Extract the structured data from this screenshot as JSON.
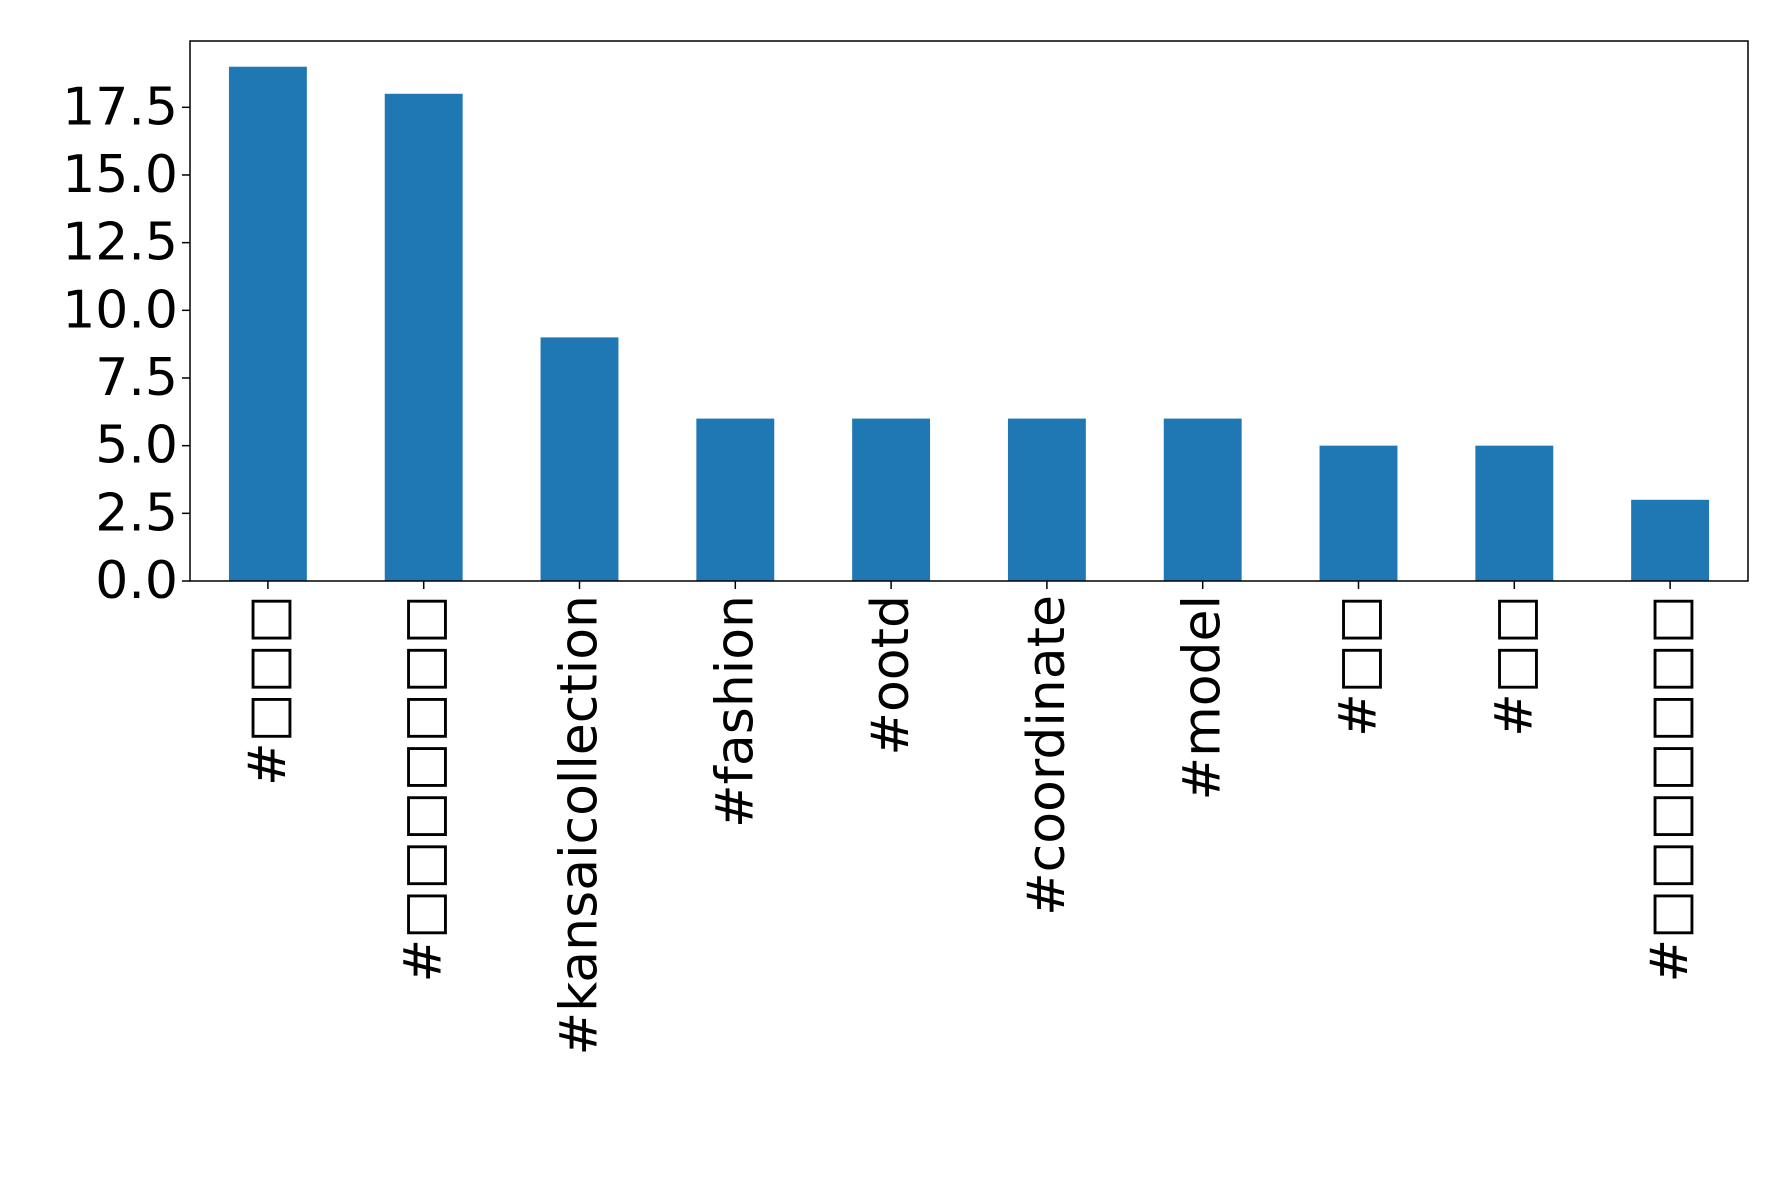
{
  "chart_data": {
    "type": "bar",
    "categories": [
      "#□□□",
      "#□□□□□□□",
      "#kansaicollection",
      "#fashion",
      "#ootd",
      "#coordinate",
      "#model",
      "#□□",
      "#□□",
      "#□□□□□□□"
    ],
    "values": [
      19,
      18,
      9,
      6,
      6,
      6,
      6,
      5,
      5,
      3
    ],
    "color": "#1f77b4",
    "ylim": [
      0,
      19.95
    ],
    "yticks": [
      {
        "value": 0,
        "label": "0.0"
      },
      2.5,
      {
        "value": 5,
        "label": "5.0"
      },
      7.5,
      {
        "value": 10,
        "label": "10.0"
      },
      12.5,
      {
        "value": 15,
        "label": "15.0"
      },
      17.5
    ]
  }
}
